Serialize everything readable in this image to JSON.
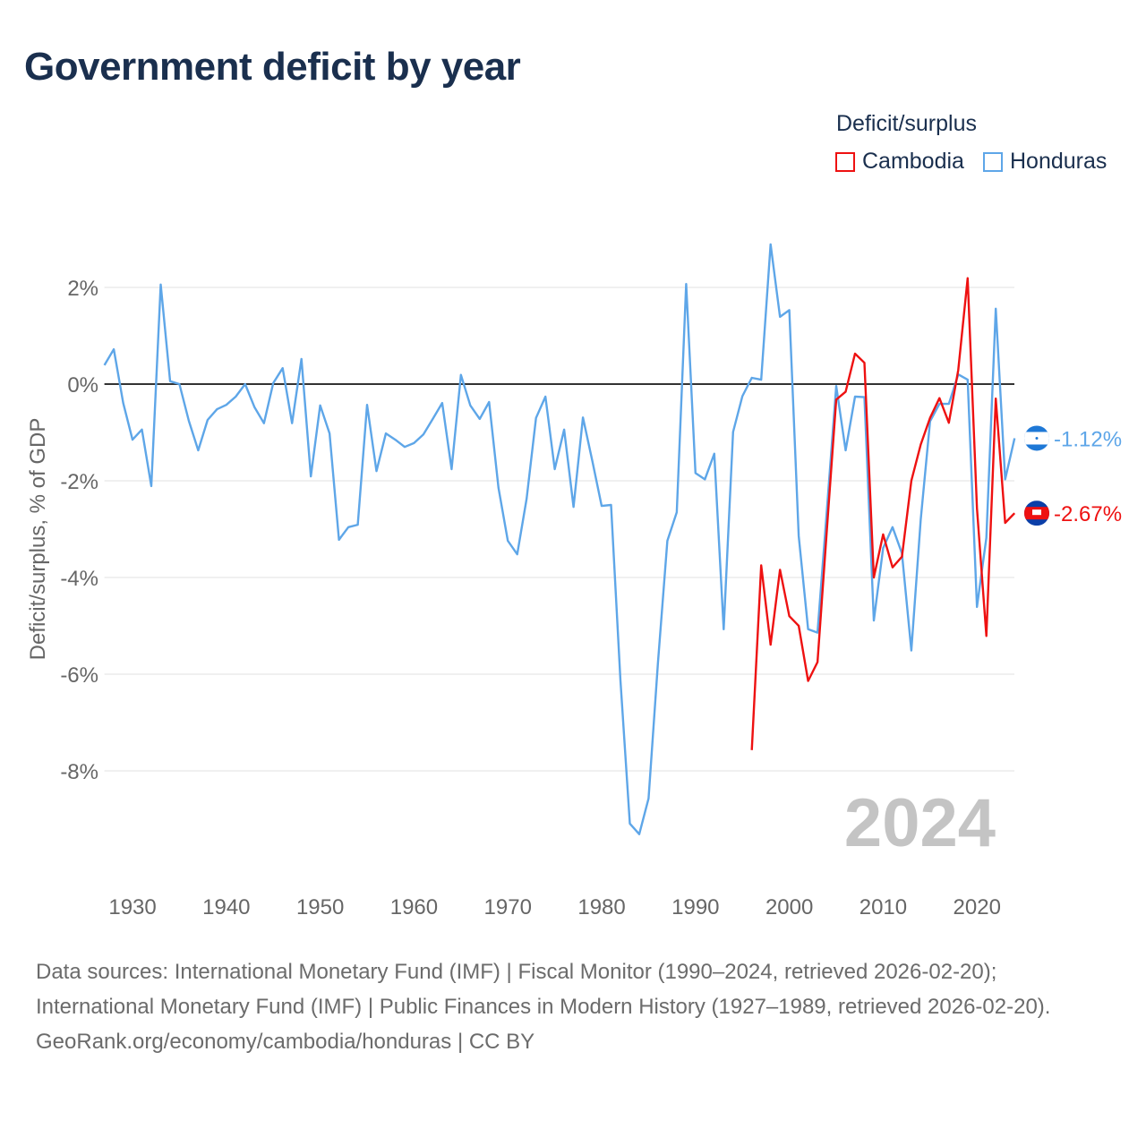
{
  "title": "Government deficit by year",
  "legend": {
    "title": "Deficit/surplus",
    "items": [
      {
        "name": "Cambodia",
        "color": "#ee1111"
      },
      {
        "name": "Honduras",
        "color": "#5ea6e8"
      }
    ]
  },
  "footer": {
    "sources": "Data sources: International Monetary Fund (IMF) | Fiscal Monitor (1990–2024, retrieved 2026-02-20); International Monetary Fund (IMF) | Public Finances in Modern History (1927–1989, retrieved 2026-02-20).",
    "credit": "GeoRank.org/economy/cambodia/honduras | CC BY"
  },
  "chart_data": {
    "type": "line",
    "title": "Government deficit by year",
    "xlabel": "",
    "ylabel": "Deficit/surplus, % of GDP",
    "xlim": [
      1927,
      2024
    ],
    "ylim": [
      -10,
      3
    ],
    "x_ticks": [
      1930,
      1940,
      1950,
      1960,
      1970,
      1980,
      1990,
      2000,
      2010,
      2020
    ],
    "y_ticks": [
      2,
      0,
      -2,
      -4,
      -6,
      -8
    ],
    "y_tick_labels": [
      "2%",
      "0%",
      "-2%",
      "-4%",
      "-6%",
      "-8%"
    ],
    "grid": true,
    "legend_position": "top-right",
    "year_label": "2024",
    "series": [
      {
        "name": "Honduras",
        "color": "#5ea6e8",
        "end_label": "-1.12%",
        "start_year": 1927,
        "values": [
          0.39,
          0.72,
          -0.39,
          -1.15,
          -0.94,
          -2.11,
          2.06,
          0.06,
          0.0,
          -0.76,
          -1.37,
          -0.74,
          -0.52,
          -0.43,
          -0.26,
          0.0,
          -0.48,
          -0.81,
          0.02,
          0.33,
          -0.81,
          0.52,
          -1.91,
          -0.44,
          -1.02,
          -3.22,
          -2.96,
          -2.91,
          -0.43,
          -1.8,
          -1.02,
          -1.15,
          -1.3,
          -1.22,
          -1.04,
          -0.72,
          -0.39,
          -1.76,
          0.19,
          -0.44,
          -0.72,
          -0.37,
          -2.15,
          -3.24,
          -3.52,
          -2.37,
          -0.7,
          -0.26,
          -1.76,
          -0.94,
          -2.54,
          -0.69,
          -1.59,
          -2.52,
          -2.5,
          -6.13,
          -9.09,
          -9.31,
          -8.57,
          -5.76,
          -3.24,
          -2.65,
          2.07,
          -1.84,
          -1.97,
          -1.44,
          -5.07,
          -0.99,
          -0.25,
          0.13,
          0.09,
          2.89,
          1.39,
          1.53,
          -3.14,
          -5.07,
          -5.14,
          -2.6,
          -0.04,
          -1.37,
          -0.26,
          -0.27,
          -4.89,
          -3.39,
          -2.96,
          -3.5,
          -5.51,
          -2.8,
          -0.77,
          -0.41,
          -0.41,
          0.2,
          0.09,
          -4.61,
          -3.18,
          1.56,
          -1.97,
          -1.12
        ]
      },
      {
        "name": "Cambodia",
        "color": "#ee1111",
        "end_label": "-2.67%",
        "start_year": 1996,
        "values": [
          -7.57,
          -3.75,
          -5.39,
          -3.84,
          -4.8,
          -5.0,
          -6.14,
          -5.75,
          -3.0,
          -0.32,
          -0.16,
          0.63,
          0.44,
          -4.0,
          -3.11,
          -3.79,
          -3.57,
          -2.0,
          -1.25,
          -0.7,
          -0.29,
          -0.8,
          0.29,
          2.19,
          -2.57,
          -5.21,
          -0.3,
          -2.87,
          -2.67
        ]
      }
    ]
  }
}
